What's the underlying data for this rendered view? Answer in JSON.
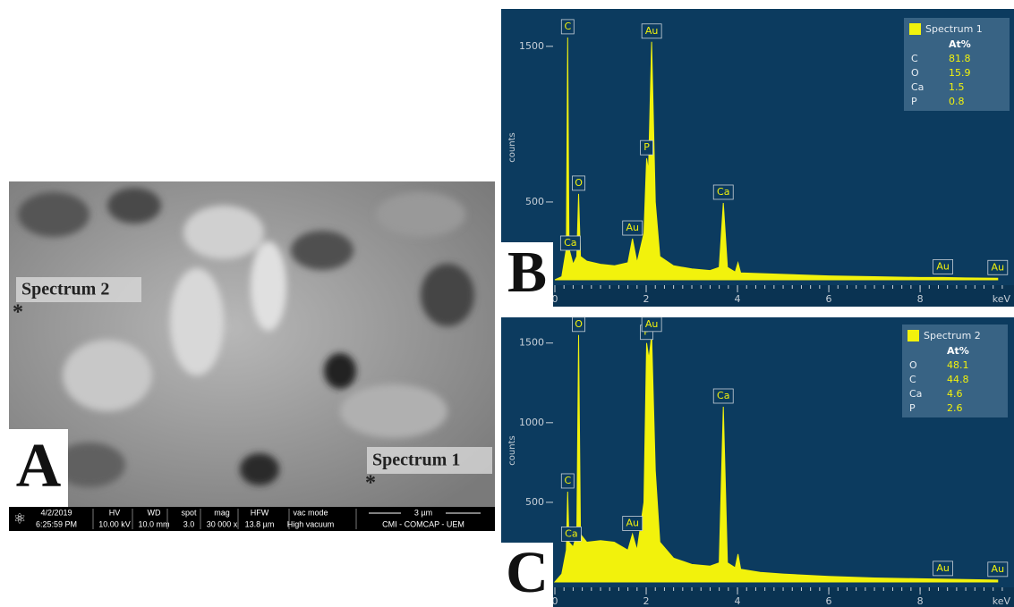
{
  "panel_a": {
    "letter": "A",
    "markers": [
      {
        "label": "Spectrum 2",
        "symbol": "*"
      },
      {
        "label": "Spectrum 1",
        "symbol": "*"
      }
    ],
    "info_bar": {
      "date": "4/2/2019",
      "time": "6:25:59 PM",
      "fields": [
        {
          "name": "HV",
          "value": "10.00 kV"
        },
        {
          "name": "WD",
          "value": "10.0 mm"
        },
        {
          "name": "spot",
          "value": "3.0"
        },
        {
          "name": "mag",
          "value": "30 000 x"
        },
        {
          "name": "HFW",
          "value": "13.8 µm"
        },
        {
          "name": "vac mode",
          "value": "High vacuum"
        }
      ],
      "scale_bar": "3 µm",
      "institution": "CMI - COMCAP - UEM"
    }
  },
  "chart_data": [
    {
      "type": "area",
      "panel_letter": "B",
      "x_label": "keV",
      "y_label": "counts",
      "x": [
        0,
        0.15,
        0.25,
        0.28,
        0.31,
        0.4,
        0.48,
        0.52,
        0.56,
        0.7,
        1.0,
        1.3,
        1.6,
        1.7,
        1.8,
        1.95,
        2.01,
        2.05,
        2.12,
        2.2,
        2.3,
        2.6,
        3.0,
        3.4,
        3.6,
        3.69,
        3.78,
        3.95,
        4.01,
        4.07,
        4.5,
        5,
        6,
        7,
        8,
        8.5,
        9,
        9.7
      ],
      "series": [
        {
          "name": "Spectrum 1",
          "color": "#f2f20c",
          "values": [
            0,
            20,
            200,
            1557,
            200,
            100,
            150,
            552,
            150,
            120,
            100,
            90,
            110,
            264,
            110,
            300,
            780,
            700,
            1529,
            500,
            150,
            90,
            70,
            60,
            80,
            494,
            80,
            50,
            110,
            45,
            40,
            35,
            25,
            20,
            15,
            15,
            12,
            10
          ]
        }
      ],
      "xlim": [
        0,
        9.9
      ],
      "ylim": [
        0,
        1700
      ],
      "xticks": [
        0,
        2,
        4,
        6,
        8
      ],
      "yticks": [
        500,
        1500
      ],
      "peak_labels": [
        {
          "label": "C",
          "x": 0.28
        },
        {
          "label": "Ca",
          "x": 0.34
        },
        {
          "label": "O",
          "x": 0.52
        },
        {
          "label": "Au",
          "x": 1.7
        },
        {
          "label": "P",
          "x": 2.01
        },
        {
          "label": "Au",
          "x": 2.12
        },
        {
          "label": "Ca",
          "x": 3.69
        },
        {
          "label": "Au",
          "x": 8.5
        },
        {
          "label": "Au",
          "x": 9.7
        }
      ],
      "legend": {
        "header": "At%",
        "rows": [
          [
            "C",
            81.8
          ],
          [
            "O",
            15.9
          ],
          [
            "Ca",
            1.5
          ],
          [
            "P",
            0.8
          ]
        ]
      }
    },
    {
      "type": "area",
      "panel_letter": "C",
      "x_label": "keV",
      "y_label": "counts",
      "x": [
        0,
        0.15,
        0.25,
        0.28,
        0.31,
        0.4,
        0.48,
        0.52,
        0.56,
        0.7,
        1.0,
        1.3,
        1.6,
        1.7,
        1.8,
        1.95,
        2.01,
        2.06,
        2.12,
        2.2,
        2.3,
        2.6,
        3.0,
        3.4,
        3.6,
        3.69,
        3.78,
        3.95,
        4.01,
        4.07,
        4.5,
        5,
        6,
        7,
        8,
        9,
        9.7
      ],
      "series": [
        {
          "name": "Spectrum 2",
          "color": "#f2f20c",
          "values": [
            0,
            50,
            200,
            567,
            250,
            220,
            300,
            1550,
            300,
            250,
            260,
            250,
            200,
            300,
            200,
            500,
            1500,
            1400,
            1550,
            700,
            250,
            150,
            110,
            100,
            120,
            1100,
            120,
            90,
            175,
            80,
            60,
            50,
            35,
            25,
            20,
            15,
            12
          ]
        }
      ],
      "xlim": [
        0,
        9.9
      ],
      "ylim": [
        0,
        1650
      ],
      "xticks": [
        0,
        2,
        4,
        6,
        8
      ],
      "yticks": [
        500,
        1000,
        1500
      ],
      "peak_labels": [
        {
          "label": "C",
          "x": 0.28
        },
        {
          "label": "Ca",
          "x": 0.36
        },
        {
          "label": "O",
          "x": 0.52
        },
        {
          "label": "Au",
          "x": 1.7
        },
        {
          "label": "P",
          "x": 2.01
        },
        {
          "label": "Au",
          "x": 2.12
        },
        {
          "label": "Ca",
          "x": 3.69
        },
        {
          "label": "Au",
          "x": 8.5
        },
        {
          "label": "Au",
          "x": 9.7
        }
      ],
      "legend": {
        "header": "At%",
        "rows": [
          [
            "O",
            48.1
          ],
          [
            "C",
            44.8
          ],
          [
            "Ca",
            4.6
          ],
          [
            "P",
            2.6
          ]
        ]
      }
    }
  ]
}
